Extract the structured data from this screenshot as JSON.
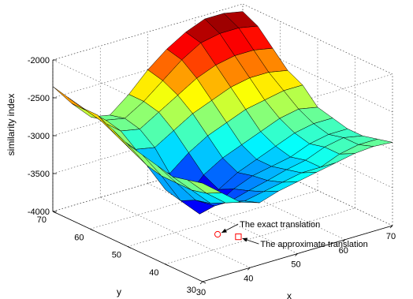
{
  "chart_data": {
    "type": "surface",
    "title": "",
    "xlabel": "x",
    "ylabel": "y",
    "zlabel": "similarity index",
    "xlim": [
      30,
      70
    ],
    "ylim": [
      30,
      70
    ],
    "zlim": [
      -4000,
      -2000
    ],
    "x_ticks": [
      "30",
      "40",
      "50",
      "60",
      "70"
    ],
    "y_ticks": [
      "30",
      "40",
      "50",
      "60",
      "70"
    ],
    "z_ticks": [
      "-4000",
      "-3500",
      "-3000",
      "-2500",
      "-2000"
    ],
    "grid": true,
    "colormap": "jet",
    "colors": {
      "mesh_edge": "#000000",
      "marker": "#ff0000",
      "axis": "#000000",
      "grid": "#555555"
    },
    "annotations": [
      {
        "text": "The exact translation",
        "marker": "circle",
        "x": 45,
        "y": 45,
        "z": -4000
      },
      {
        "text": "The approximate translation",
        "marker": "square",
        "x": 47,
        "y": 42,
        "z": -4000
      }
    ],
    "surface": {
      "x": [
        30,
        34,
        38,
        42,
        46,
        50,
        54,
        58,
        62,
        66,
        70
      ],
      "y": [
        30,
        34,
        38,
        42,
        46,
        50,
        54,
        58,
        62,
        66,
        70
      ],
      "z": [
        [
          -2700,
          -2900,
          -3100,
          -3180,
          -3100,
          -3050,
          -3000,
          -2950,
          -2900,
          -2880,
          -2900
        ],
        [
          -2750,
          -3000,
          -3200,
          -3250,
          -3200,
          -3150,
          -3100,
          -3100,
          -3000,
          -2950,
          -2950
        ],
        [
          -2800,
          -3050,
          -3300,
          -3350,
          -3280,
          -3220,
          -3150,
          -3100,
          -3000,
          -2950,
          -3000
        ],
        [
          -2750,
          -3050,
          -3350,
          -3500,
          -3350,
          -3250,
          -3200,
          -3150,
          -3050,
          -3000,
          -3000
        ],
        [
          -2700,
          -3050,
          -3450,
          -3700,
          -3450,
          -3300,
          -3200,
          -3100,
          -3000,
          -2950,
          -2950
        ],
        [
          -2650,
          -3000,
          -3400,
          -3600,
          -3350,
          -3200,
          -3100,
          -3000,
          -2900,
          -2850,
          -2900
        ],
        [
          -2550,
          -2900,
          -3200,
          -3350,
          -3150,
          -3000,
          -2900,
          -2800,
          -2750,
          -2700,
          -2700
        ],
        [
          -2450,
          -2800,
          -3050,
          -3100,
          -2950,
          -2800,
          -2700,
          -2600,
          -2550,
          -2550,
          -2600
        ],
        [
          -2450,
          -2700,
          -2900,
          -2950,
          -2800,
          -2650,
          -2500,
          -2400,
          -2350,
          -2350,
          -2400
        ],
        [
          -2400,
          -2650,
          -2850,
          -2900,
          -2750,
          -2550,
          -2350,
          -2200,
          -2150,
          -2150,
          -2200
        ],
        [
          -2350,
          -2650,
          -2900,
          -2950,
          -2750,
          -2500,
          -2300,
          -2150,
          -2050,
          -2050,
          -2100
        ]
      ]
    }
  }
}
